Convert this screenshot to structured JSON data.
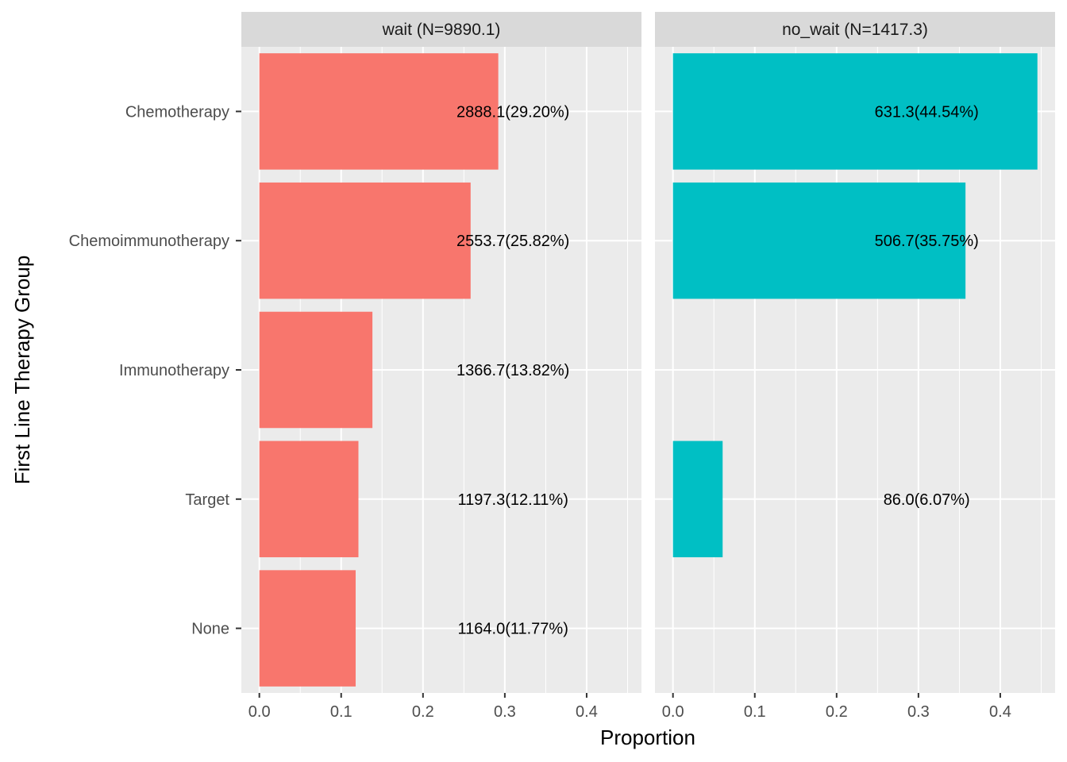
{
  "chart_data": {
    "type": "bar",
    "orientation": "horizontal",
    "xlabel": "Proportion",
    "ylabel": "First Line Therapy Group",
    "xlim": [
      -0.022,
      0.467
    ],
    "x_ticks": [
      "0.0",
      "0.1",
      "0.2",
      "0.3",
      "0.4"
    ],
    "x_tick_values": [
      0.0,
      0.1,
      0.2,
      0.3,
      0.4
    ],
    "categories": [
      "Chemotherapy",
      "Chemoimmunotherapy",
      "Immunotherapy",
      "Target",
      "None"
    ],
    "grid": true,
    "legend": "none",
    "panels": [
      {
        "strip": "wait (N=9890.1)",
        "color": "#F8766D",
        "values": [
          0.292,
          0.2582,
          0.1382,
          0.1211,
          0.1177
        ],
        "labels": [
          "2888.1(29.20%)",
          "2553.7(25.82%)",
          "1366.7(13.82%)",
          "1197.3(12.11%)",
          "1164.0(11.77%)"
        ]
      },
      {
        "strip": "no_wait (N=1417.3)",
        "color": "#00BFC4",
        "values": [
          0.4454,
          0.3575,
          null,
          0.0607,
          null
        ],
        "labels": [
          "631.3(44.54%)",
          "506.7(35.75%)",
          null,
          "86.0(6.07%)",
          null
        ]
      }
    ]
  }
}
